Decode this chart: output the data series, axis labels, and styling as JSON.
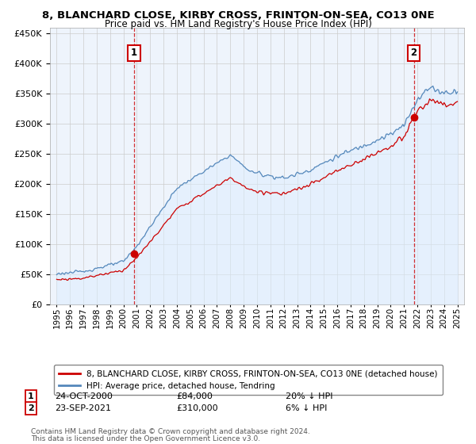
{
  "title": "8, BLANCHARD CLOSE, KIRBY CROSS, FRINTON-ON-SEA, CO13 0NE",
  "subtitle": "Price paid vs. HM Land Registry's House Price Index (HPI)",
  "legend_line1": "8, BLANCHARD CLOSE, KIRBY CROSS, FRINTON-ON-SEA, CO13 0NE (detached house)",
  "legend_line2": "HPI: Average price, detached house, Tendring",
  "transaction1": {
    "date": "24-OCT-2000",
    "price": 84000,
    "hpi_rel": "20% ↓ HPI",
    "label": "1",
    "x": 2000.8
  },
  "transaction2": {
    "date": "23-SEP-2021",
    "price": 310000,
    "hpi_rel": "6% ↓ HPI",
    "label": "2",
    "x": 2021.73
  },
  "footer1": "Contains HM Land Registry data © Crown copyright and database right 2024.",
  "footer2": "This data is licensed under the Open Government Licence v3.0.",
  "ylim": [
    0,
    460000
  ],
  "yticks": [
    0,
    50000,
    100000,
    150000,
    200000,
    250000,
    300000,
    350000,
    400000,
    450000
  ],
  "xlim_start": 1994.5,
  "xlim_end": 2025.5,
  "red_color": "#cc0000",
  "blue_color": "#5588bb",
  "blue_fill": "#ddeeff",
  "marker_color": "#cc0000",
  "grid_color": "#cccccc",
  "bg_color": "#ffffff",
  "plot_bg": "#eef4fc"
}
